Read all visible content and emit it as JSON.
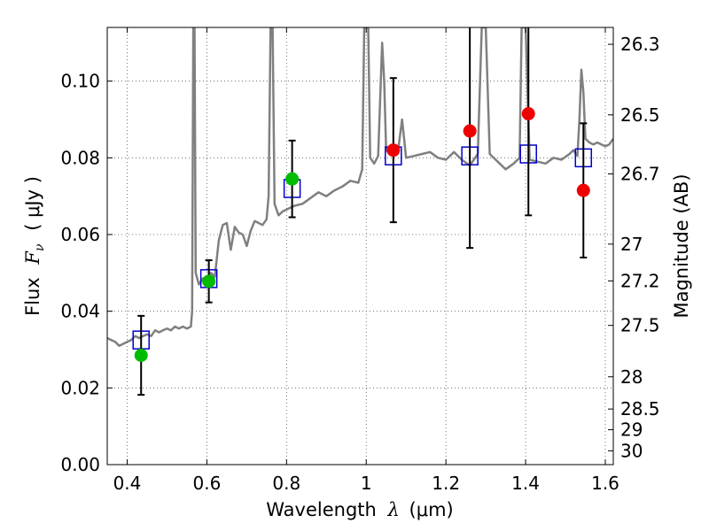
{
  "chart_data": {
    "type": "scatter",
    "title": "",
    "xlabel_prefix": "Wavelength",
    "xlabel_symbol": "λ",
    "xlabel_unit": "(μm)",
    "ylabel_prefix": "Flux",
    "ylabel_symbol": "F",
    "ylabel_sub": "ν",
    "ylabel_unit": "( μJy )",
    "y2label": "Magnitude (AB)",
    "xlim": [
      0.35,
      1.62
    ],
    "ylim": [
      0.0,
      0.114
    ],
    "grid": true,
    "x_ticks": [
      0.4,
      0.6,
      0.8,
      1.0,
      1.2,
      1.4,
      1.6
    ],
    "x_tick_labels": [
      "0.4",
      "0.6",
      "0.8",
      "1",
      "1.2",
      "1.4",
      "1.6"
    ],
    "y_ticks": [
      0.0,
      0.02,
      0.04,
      0.06,
      0.08,
      0.1
    ],
    "y_tick_labels": [
      "0.00",
      "0.02",
      "0.04",
      "0.06",
      "0.08",
      "0.10"
    ],
    "y2_ticks": [
      {
        "label": "26.3",
        "flux": 0.1096
      },
      {
        "label": "26.5",
        "flux": 0.0912
      },
      {
        "label": "26.7",
        "flux": 0.0758
      },
      {
        "label": "27",
        "flux": 0.0575
      },
      {
        "label": "27.2",
        "flux": 0.0479
      },
      {
        "label": "27.5",
        "flux": 0.0363
      },
      {
        "label": "28",
        "flux": 0.0229
      },
      {
        "label": "28.5",
        "flux": 0.0145
      },
      {
        "label": "29",
        "flux": 0.0091
      },
      {
        "label": "30",
        "flux": 0.0036
      }
    ],
    "colors": {
      "model": "#808080",
      "model_photometry": "#0000cc",
      "green_points": "#00bb00",
      "red_points": "#ee0000",
      "error_bars": "#000000",
      "grid": "#555555"
    },
    "series": [
      {
        "name": "model spectrum",
        "type": "line",
        "points": [
          [
            0.35,
            0.033
          ],
          [
            0.36,
            0.0325
          ],
          [
            0.37,
            0.032
          ],
          [
            0.38,
            0.031
          ],
          [
            0.39,
            0.0315
          ],
          [
            0.4,
            0.032
          ],
          [
            0.41,
            0.0325
          ],
          [
            0.42,
            0.0335
          ],
          [
            0.43,
            0.033
          ],
          [
            0.44,
            0.0335
          ],
          [
            0.45,
            0.034
          ],
          [
            0.46,
            0.0335
          ],
          [
            0.47,
            0.035
          ],
          [
            0.48,
            0.0345
          ],
          [
            0.49,
            0.035
          ],
          [
            0.5,
            0.0355
          ],
          [
            0.51,
            0.035
          ],
          [
            0.52,
            0.036
          ],
          [
            0.53,
            0.0355
          ],
          [
            0.54,
            0.036
          ],
          [
            0.55,
            0.0355
          ],
          [
            0.56,
            0.036
          ],
          [
            0.563,
            0.04
          ],
          [
            0.566,
            0.114
          ],
          [
            0.569,
            0.114
          ],
          [
            0.572,
            0.05
          ],
          [
            0.58,
            0.047
          ],
          [
            0.59,
            0.0485
          ],
          [
            0.6,
            0.049
          ],
          [
            0.61,
            0.05
          ],
          [
            0.62,
            0.049
          ],
          [
            0.63,
            0.0585
          ],
          [
            0.64,
            0.0625
          ],
          [
            0.65,
            0.063
          ],
          [
            0.66,
            0.056
          ],
          [
            0.67,
            0.062
          ],
          [
            0.68,
            0.0605
          ],
          [
            0.69,
            0.06
          ],
          [
            0.7,
            0.057
          ],
          [
            0.71,
            0.061
          ],
          [
            0.72,
            0.0635
          ],
          [
            0.73,
            0.063
          ],
          [
            0.74,
            0.0625
          ],
          [
            0.75,
            0.064
          ],
          [
            0.755,
            0.07
          ],
          [
            0.76,
            0.114
          ],
          [
            0.765,
            0.114
          ],
          [
            0.77,
            0.068
          ],
          [
            0.78,
            0.065
          ],
          [
            0.79,
            0.066
          ],
          [
            0.8,
            0.0665
          ],
          [
            0.82,
            0.0675
          ],
          [
            0.84,
            0.068
          ],
          [
            0.86,
            0.0695
          ],
          [
            0.88,
            0.071
          ],
          [
            0.9,
            0.07
          ],
          [
            0.92,
            0.0715
          ],
          [
            0.94,
            0.0725
          ],
          [
            0.96,
            0.074
          ],
          [
            0.98,
            0.0735
          ],
          [
            0.99,
            0.077
          ],
          [
            0.995,
            0.114
          ],
          [
            1.0,
            0.114
          ],
          [
            1.005,
            0.114
          ],
          [
            1.01,
            0.08
          ],
          [
            1.02,
            0.0785
          ],
          [
            1.03,
            0.0805
          ],
          [
            1.04,
            0.11
          ],
          [
            1.045,
            0.1
          ],
          [
            1.05,
            0.082
          ],
          [
            1.06,
            0.081
          ],
          [
            1.07,
            0.0815
          ],
          [
            1.08,
            0.082
          ],
          [
            1.09,
            0.09
          ],
          [
            1.1,
            0.08
          ],
          [
            1.12,
            0.0805
          ],
          [
            1.14,
            0.081
          ],
          [
            1.16,
            0.0815
          ],
          [
            1.18,
            0.08
          ],
          [
            1.2,
            0.0795
          ],
          [
            1.22,
            0.0815
          ],
          [
            1.24,
            0.0795
          ],
          [
            1.26,
            0.078
          ],
          [
            1.28,
            0.081
          ],
          [
            1.29,
            0.114
          ],
          [
            1.3,
            0.114
          ],
          [
            1.31,
            0.081
          ],
          [
            1.33,
            0.079
          ],
          [
            1.35,
            0.077
          ],
          [
            1.37,
            0.0785
          ],
          [
            1.385,
            0.08
          ],
          [
            1.39,
            0.114
          ],
          [
            1.4,
            0.114
          ],
          [
            1.41,
            0.0795
          ],
          [
            1.43,
            0.079
          ],
          [
            1.45,
            0.0785
          ],
          [
            1.47,
            0.08
          ],
          [
            1.49,
            0.0795
          ],
          [
            1.51,
            0.081
          ],
          [
            1.52,
            0.082
          ],
          [
            1.53,
            0.0805
          ],
          [
            1.535,
            0.09
          ],
          [
            1.54,
            0.103
          ],
          [
            1.545,
            0.097
          ],
          [
            1.55,
            0.085
          ],
          [
            1.56,
            0.084
          ],
          [
            1.57,
            0.0835
          ],
          [
            1.58,
            0.084
          ],
          [
            1.59,
            0.0835
          ],
          [
            1.6,
            0.083
          ],
          [
            1.61,
            0.0835
          ],
          [
            1.62,
            0.085
          ]
        ]
      },
      {
        "name": "model photometry",
        "type": "square",
        "x": [
          0.435,
          0.605,
          0.814,
          1.068,
          1.26,
          1.407,
          1.545
        ],
        "y": [
          0.0325,
          0.0485,
          0.072,
          0.0805,
          0.0805,
          0.081,
          0.08
        ]
      },
      {
        "name": "green photometry",
        "type": "circle",
        "x": [
          0.435,
          0.605,
          0.814
        ],
        "y": [
          0.0285,
          0.0478,
          0.0745
        ],
        "yerr": [
          0.0103,
          0.0055,
          0.01
        ]
      },
      {
        "name": "red photometry",
        "type": "circle",
        "x": [
          1.068,
          1.26,
          1.407,
          1.545
        ],
        "y": [
          0.082,
          0.087,
          0.0915,
          0.0715
        ],
        "yerr": [
          0.0188,
          0.0305,
          0.0265,
          0.0175
        ]
      }
    ]
  }
}
